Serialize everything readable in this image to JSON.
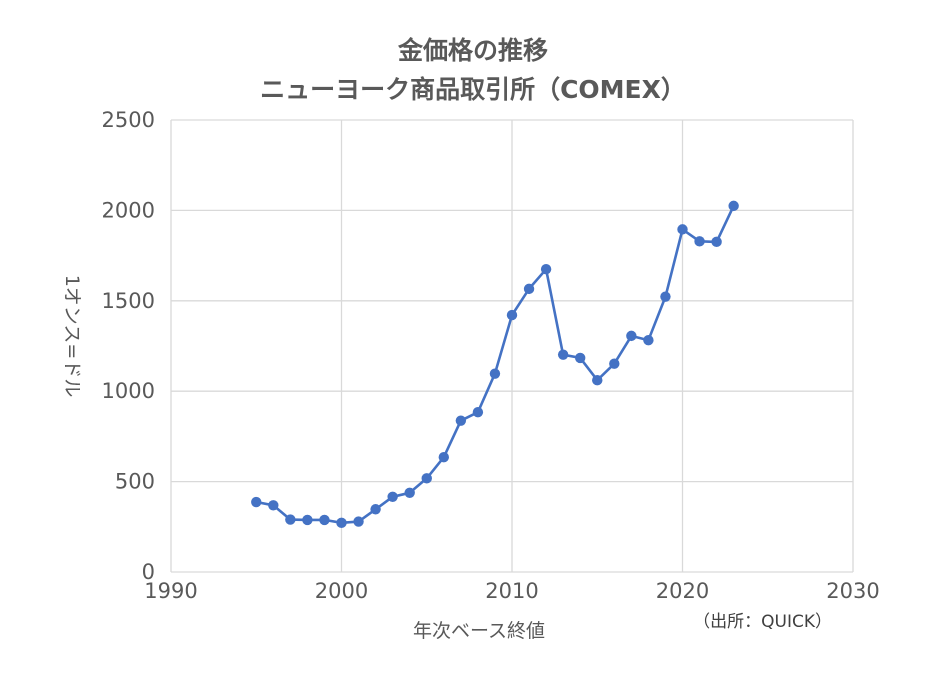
{
  "chart_data": {
    "type": "line",
    "title": "金価格の推移",
    "subtitle": "ニューヨーク商品取引所（COMEX）",
    "xlabel": "年次ベース終値",
    "ylabel": "1オンス=ドル",
    "source": "（出所：QUICK）",
    "xlim": [
      1990,
      2030
    ],
    "ylim": [
      0,
      2500
    ],
    "xticks": [
      1990,
      2000,
      2010,
      2020,
      2030
    ],
    "yticks": [
      0,
      500,
      1000,
      1500,
      2000,
      2500
    ],
    "grid": true,
    "legend": "none",
    "color": "#4472c4",
    "series": [
      {
        "x": [
          1995,
          1996,
          1997,
          1998,
          1999,
          2000,
          2001,
          2002,
          2003,
          2004,
          2005,
          2006,
          2007,
          2008,
          2009,
          2010,
          2011,
          2012,
          2013,
          2014,
          2015,
          2016,
          2017,
          2018,
          2019,
          2020,
          2021,
          2022,
          2023
        ],
        "values": [
          387,
          369,
          290,
          288,
          288,
          272,
          279,
          347,
          416,
          438,
          518,
          635,
          837,
          884,
          1097,
          1421,
          1566,
          1675,
          1202,
          1184,
          1061,
          1152,
          1306,
          1282,
          1523,
          1895,
          1829,
          1826,
          2025
        ]
      }
    ]
  }
}
